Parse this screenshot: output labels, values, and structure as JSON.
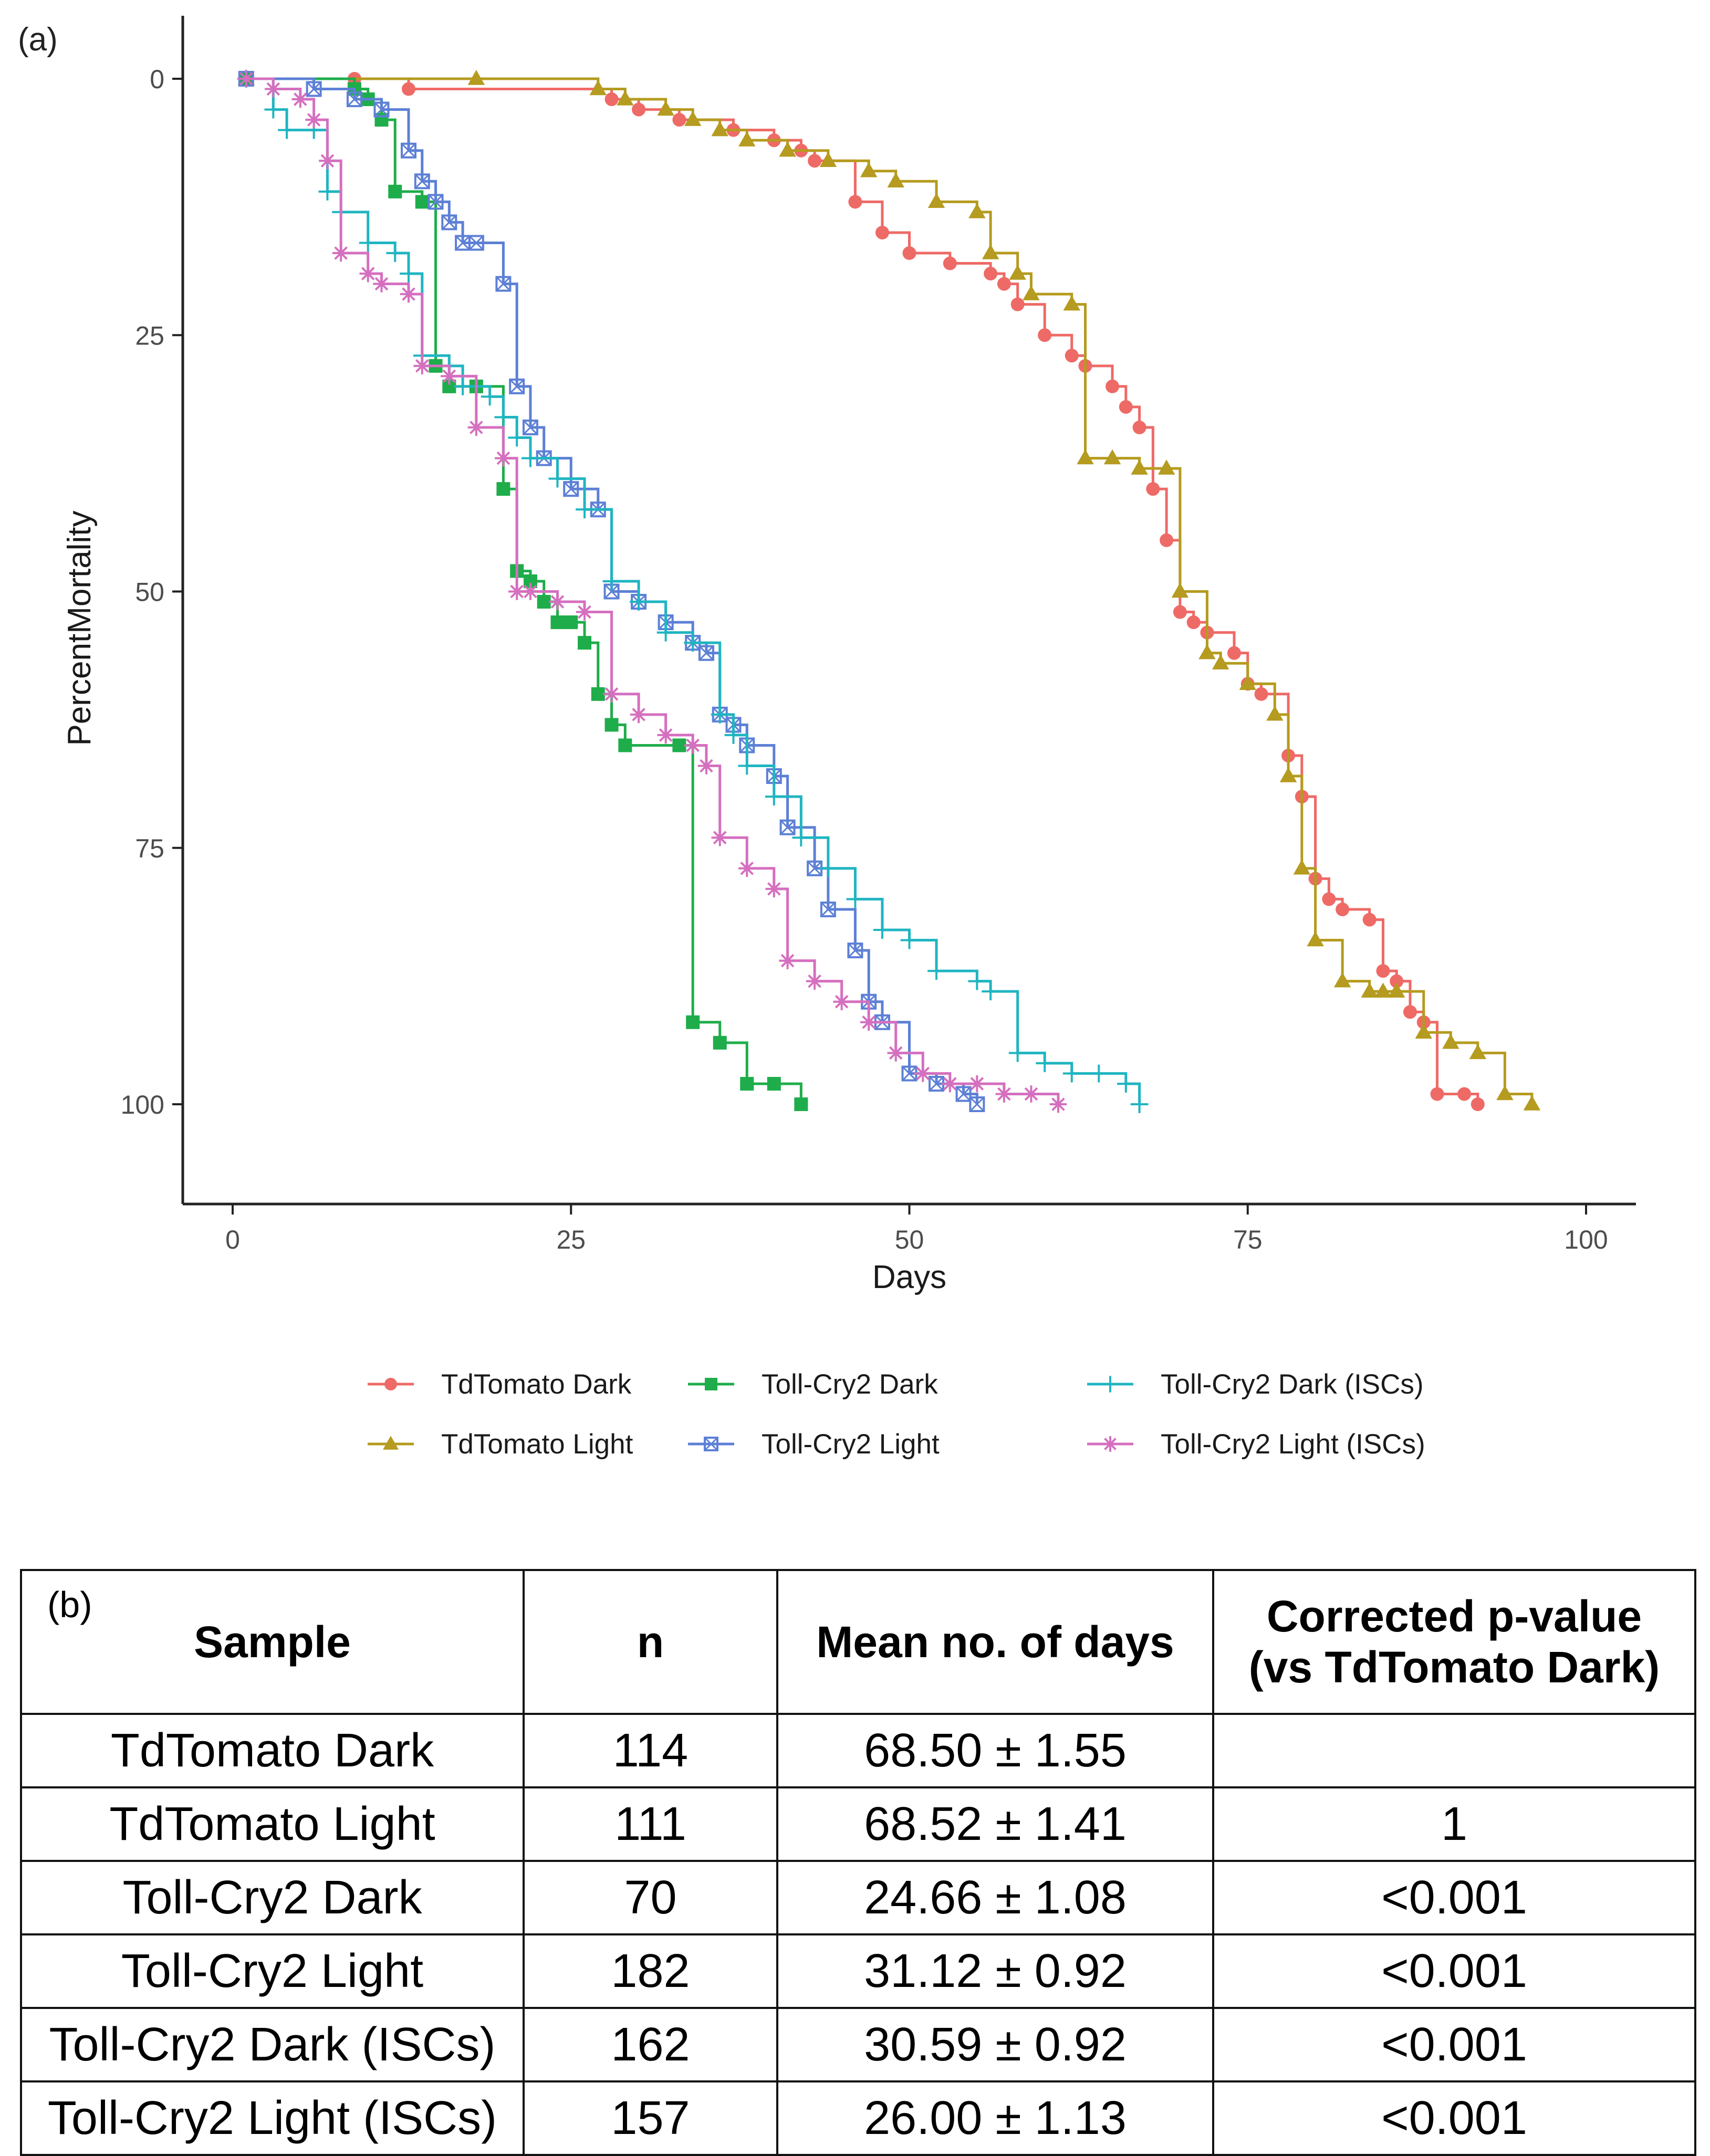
{
  "figure": {
    "panel_a_label": "(a)",
    "panel_b_label": "(b)"
  },
  "chart_data": {
    "type": "line",
    "xlabel": "Days",
    "ylabel": "PercentMortality",
    "xlim": [
      0,
      100
    ],
    "ylim": [
      0,
      100
    ],
    "y_reversed": true,
    "x_ticks": [
      "0",
      "25",
      "50",
      "75",
      "100"
    ],
    "y_ticks": [
      "0",
      "25",
      "50",
      "75",
      "100"
    ],
    "grid": false,
    "legend_position": "bottom",
    "series": [
      {
        "name": "TdTomato Dark",
        "color": "#ee6a66",
        "marker": "circle",
        "x": [
          1,
          9,
          13,
          28,
          30,
          33,
          37,
          40,
          42,
          43,
          46,
          48,
          50,
          53,
          56,
          57,
          58,
          60,
          62,
          63,
          65,
          66,
          67,
          68,
          69,
          70,
          71,
          72,
          74,
          75,
          76,
          78,
          79,
          80,
          81,
          82,
          84,
          85,
          86,
          87,
          88,
          89,
          91,
          92
        ],
        "y": [
          0,
          0,
          1,
          2,
          3,
          4,
          5,
          6,
          7,
          8,
          12,
          15,
          17,
          18,
          19,
          20,
          22,
          25,
          27,
          28,
          30,
          32,
          34,
          40,
          45,
          52,
          53,
          54,
          56,
          59,
          60,
          66,
          70,
          78,
          80,
          81,
          82,
          87,
          88,
          91,
          92,
          99,
          99,
          100
        ]
      },
      {
        "name": "TdTomato Light",
        "color": "#b59b1f",
        "marker": "triangle",
        "x": [
          1,
          18,
          27,
          29,
          32,
          34,
          36,
          38,
          41,
          44,
          47,
          49,
          52,
          55,
          56,
          58,
          59,
          62,
          63,
          65,
          67,
          69,
          70,
          72,
          73,
          75,
          77,
          78,
          79,
          80,
          82,
          84,
          85,
          86,
          88,
          90,
          92,
          94,
          96
        ],
        "y": [
          0,
          0,
          1,
          2,
          3,
          4,
          5,
          6,
          7,
          8,
          9,
          10,
          12,
          13,
          17,
          19,
          21,
          22,
          37,
          37,
          38,
          38,
          50,
          56,
          57,
          59,
          62,
          68,
          77,
          84,
          88,
          89,
          89,
          89,
          93,
          94,
          95,
          99,
          100
        ]
      },
      {
        "name": "Toll-Cry2 Dark",
        "color": "#1ead4a",
        "marker": "square",
        "x": [
          1,
          9,
          10,
          11,
          12,
          14,
          15,
          16,
          18,
          20,
          21,
          22,
          23,
          24,
          25,
          26,
          27,
          28,
          29,
          33,
          34,
          36,
          38,
          40,
          42
        ],
        "y": [
          0,
          1,
          2,
          4,
          11,
          12,
          28,
          30,
          30,
          40,
          48,
          49,
          51,
          53,
          53,
          55,
          60,
          63,
          65,
          65,
          92,
          94,
          98,
          98,
          100
        ]
      },
      {
        "name": "Toll-Cry2 Light",
        "color": "#5d80d6",
        "marker": "square-cross",
        "x": [
          1,
          6,
          9,
          11,
          13,
          14,
          15,
          16,
          17,
          18,
          20,
          21,
          22,
          23,
          25,
          27,
          28,
          30,
          32,
          34,
          35,
          36,
          37,
          38,
          40,
          41,
          43,
          44,
          46,
          47,
          48,
          50,
          52,
          54,
          55
        ],
        "y": [
          0,
          1,
          2,
          3,
          7,
          10,
          12,
          14,
          16,
          16,
          20,
          30,
          34,
          37,
          40,
          42,
          50,
          51,
          53,
          55,
          56,
          62,
          63,
          65,
          68,
          73,
          77,
          81,
          85,
          90,
          92,
          97,
          98,
          99,
          100
        ]
      },
      {
        "name": "Toll-Cry2 Dark (ISCs)",
        "color": "#1fb5c1",
        "marker": "plus",
        "x": [
          1,
          3,
          4,
          6,
          7,
          8,
          10,
          12,
          13,
          14,
          16,
          17,
          19,
          20,
          21,
          22,
          24,
          26,
          28,
          30,
          32,
          34,
          36,
          37,
          38,
          40,
          42,
          44,
          46,
          48,
          50,
          52,
          55,
          56,
          58,
          60,
          62,
          64,
          66,
          67
        ],
        "y": [
          0,
          3,
          5,
          5,
          11,
          13,
          16,
          17,
          19,
          27,
          28,
          30,
          31,
          33,
          35,
          37,
          39,
          42,
          49,
          51,
          54,
          55,
          62,
          64,
          67,
          70,
          74,
          77,
          80,
          83,
          84,
          87,
          88,
          89,
          95,
          96,
          97,
          97,
          98,
          100
        ]
      },
      {
        "name": "Toll-Cry2 Light (ISCs)",
        "color": "#d56fbf",
        "marker": "asterisk",
        "x": [
          1,
          3,
          5,
          6,
          7,
          8,
          10,
          11,
          13,
          14,
          16,
          18,
          20,
          21,
          22,
          24,
          26,
          28,
          30,
          32,
          34,
          35,
          36,
          38,
          40,
          41,
          43,
          45,
          47,
          49,
          51,
          53,
          55,
          57,
          59,
          61
        ],
        "y": [
          0,
          1,
          2,
          4,
          8,
          17,
          19,
          20,
          21,
          28,
          29,
          34,
          37,
          50,
          50,
          51,
          52,
          60,
          62,
          64,
          65,
          67,
          74,
          77,
          79,
          86,
          88,
          90,
          92,
          95,
          97,
          98,
          98,
          99,
          99,
          100
        ]
      }
    ]
  },
  "table": {
    "headers": {
      "sample": "Sample",
      "n": "n",
      "mean": "Mean no. of days",
      "pvalue_line1": "Corrected p-value",
      "pvalue_line2": "(vs TdTomato Dark)"
    },
    "rows": [
      {
        "sample": "TdTomato Dark",
        "n": "114",
        "mean": "68.50 ± 1.55",
        "p": ""
      },
      {
        "sample": "TdTomato Light",
        "n": "111",
        "mean": "68.52 ± 1.41",
        "p": "1"
      },
      {
        "sample": "Toll-Cry2 Dark",
        "n": "70",
        "mean": "24.66 ± 1.08",
        "p": "<0.001"
      },
      {
        "sample": "Toll-Cry2 Light",
        "n": "182",
        "mean": "31.12 ± 0.92",
        "p": "<0.001"
      },
      {
        "sample": "Toll-Cry2 Dark (ISCs)",
        "n": "162",
        "mean": "30.59 ± 0.92",
        "p": "<0.001"
      },
      {
        "sample": "Toll-Cry2 Light (ISCs)",
        "n": "157",
        "mean": "26.00 ± 1.13",
        "p": "<0.001"
      }
    ]
  }
}
